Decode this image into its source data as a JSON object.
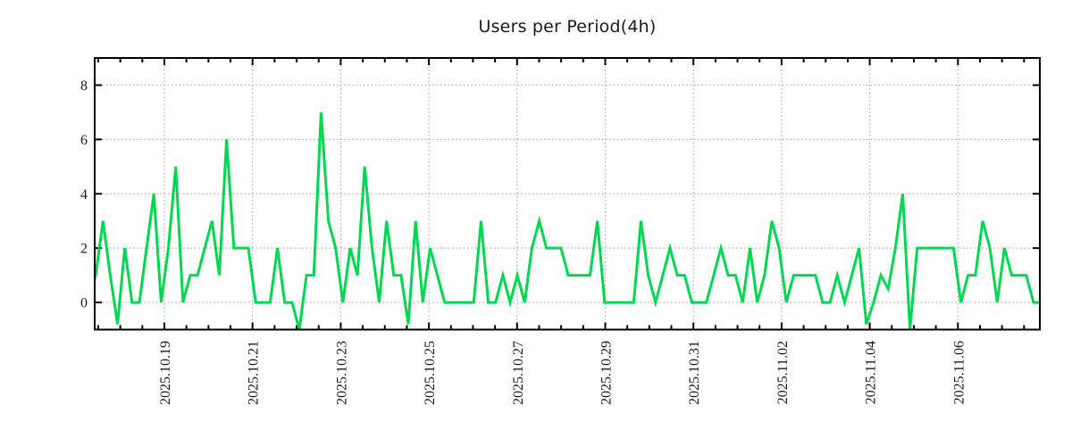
{
  "title": "Users per Period(4h)",
  "chart_data": {
    "type": "line",
    "title": "Users per Period(4h)",
    "series": [
      {
        "name": "users",
        "period_per_point": "4h",
        "values": [
          0,
          1,
          3,
          1,
          -0.8,
          2,
          0,
          0,
          2,
          4,
          0,
          2,
          5,
          0,
          1,
          1,
          2,
          3,
          1,
          6,
          2,
          2,
          2,
          0,
          0,
          0,
          2,
          0,
          0,
          -1,
          1,
          1,
          7,
          3,
          2,
          0,
          2,
          1,
          5,
          2,
          0,
          3,
          1,
          1,
          -0.8,
          3,
          0,
          2,
          1,
          0,
          0,
          0,
          0,
          0,
          3,
          0,
          0,
          1,
          0,
          1,
          0,
          2,
          3,
          2,
          2,
          2,
          1,
          1,
          1,
          1,
          3,
          0,
          0,
          0,
          0,
          0,
          3,
          1,
          0,
          1,
          2,
          1,
          1,
          0,
          0,
          0,
          1,
          2,
          1,
          1,
          0,
          2,
          0,
          1,
          3,
          2,
          0,
          1,
          1,
          1,
          1,
          0,
          0,
          1,
          0,
          1,
          2,
          -0.8,
          0,
          1,
          0.5,
          2,
          4,
          -1,
          2,
          2,
          2,
          2,
          2,
          2,
          0,
          1,
          1,
          3,
          2,
          0,
          2,
          1,
          1,
          1,
          0,
          0
        ]
      }
    ],
    "x_tick_labels": [
      "2025.10.19",
      "2025.10.21",
      "2025.10.23",
      "2025.10.25",
      "2025.10.27",
      "2025.10.29",
      "2025.10.31",
      "2025.11.02",
      "2025.11.04",
      "2025.11.06"
    ],
    "x_major_interval": "2 days",
    "x_minor_interval": "12h",
    "y_tick_labels": [
      "0",
      "2",
      "4",
      "6",
      "8"
    ],
    "y_ticks": [
      0,
      2,
      4,
      6,
      8
    ],
    "ylim": [
      -1,
      9
    ],
    "grid": "dotted",
    "legend": "none",
    "colors": {
      "line": "#00d850",
      "grid": "#a8a8a8",
      "axis": "#000000",
      "text": "#1a1a1a",
      "background": "#ffffff"
    }
  }
}
